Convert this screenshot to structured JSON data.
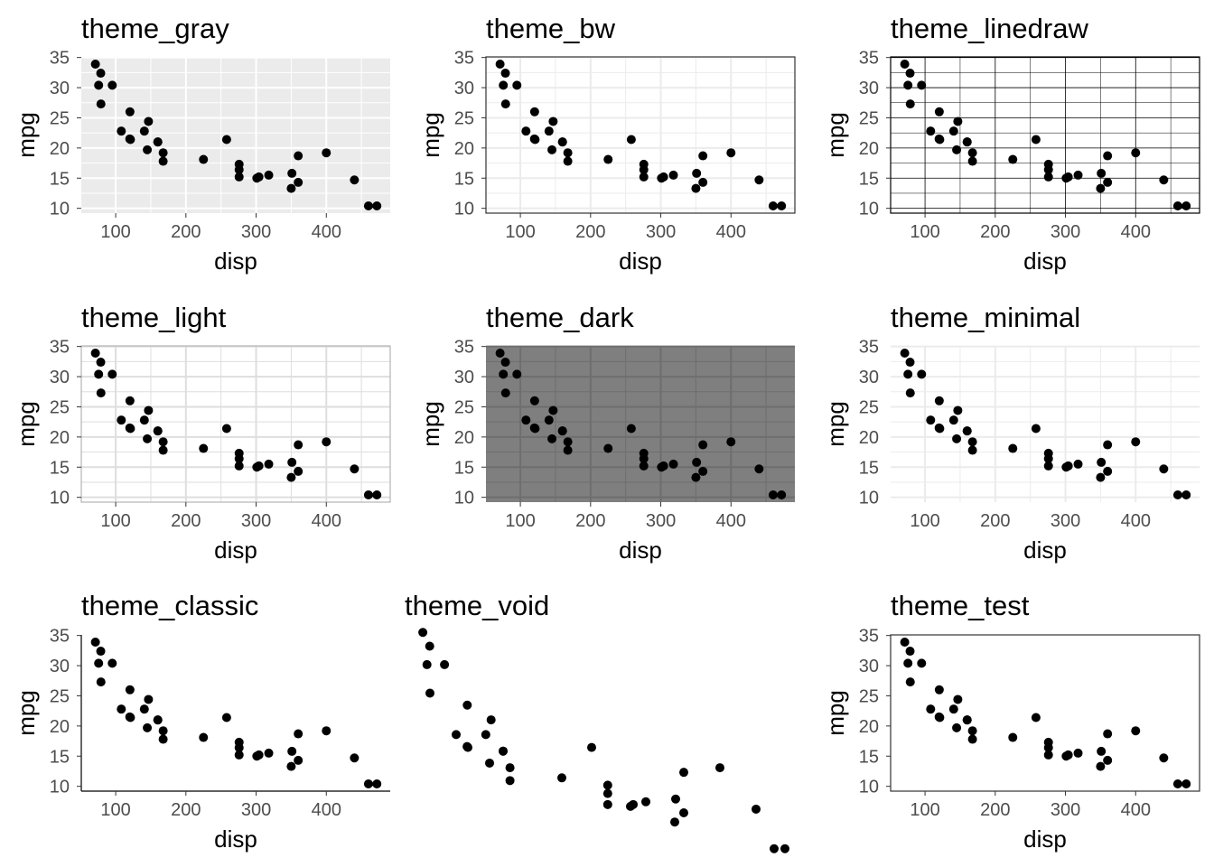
{
  "figure": {
    "shared": {
      "x": [
        71.1,
        75.7,
        78.7,
        79,
        95.1,
        108,
        120.1,
        120.3,
        121,
        140.8,
        145,
        146.7,
        160,
        160,
        167.6,
        167.6,
        225,
        258,
        275.8,
        275.8,
        275.8,
        301,
        304,
        318,
        350,
        351,
        360,
        360,
        400,
        440,
        460,
        472
      ],
      "y": [
        33.9,
        30.4,
        32.4,
        27.3,
        30.4,
        22.8,
        21.5,
        26,
        21.4,
        22.8,
        19.7,
        24.4,
        21,
        21,
        19.2,
        17.8,
        18.1,
        21.4,
        16.4,
        17.3,
        15.2,
        15,
        15.2,
        15.5,
        13.3,
        15.8,
        18.7,
        14.3,
        19.2,
        14.7,
        10.4,
        10.4
      ],
      "xlabel": "disp",
      "ylabel": "mpg",
      "xticks": [
        100,
        200,
        300,
        400
      ],
      "yticks": [
        10,
        15,
        20,
        25,
        30,
        35
      ]
    }
  },
  "chart_data": [
    {
      "type": "scatter",
      "title": "theme_gray",
      "theme": "gray",
      "panel_bg": "#ebebeb",
      "grid_color": "#ffffff",
      "xlabel": "disp",
      "ylabel": "mpg",
      "xlim": [
        51,
        491
      ],
      "ylim": [
        9.2,
        35.1
      ]
    },
    {
      "type": "scatter",
      "title": "theme_bw",
      "theme": "bw",
      "panel_bg": "#ffffff",
      "grid_color": "#ebebeb",
      "border_color": "#333333",
      "xlabel": "disp",
      "ylabel": "mpg",
      "xlim": [
        51,
        491
      ],
      "ylim": [
        9.2,
        35.1
      ]
    },
    {
      "type": "scatter",
      "title": "theme_linedraw",
      "theme": "linedraw",
      "panel_bg": "#ffffff",
      "grid_color": "#000000",
      "border_color": "#000000",
      "xlabel": "disp",
      "ylabel": "mpg",
      "xlim": [
        51,
        491
      ],
      "ylim": [
        9.2,
        35.1
      ]
    },
    {
      "type": "scatter",
      "title": "theme_light",
      "theme": "light",
      "panel_bg": "#ffffff",
      "grid_color": "#dedede",
      "border_color": "#b3b3b3",
      "xlabel": "disp",
      "ylabel": "mpg",
      "xlim": [
        51,
        491
      ],
      "ylim": [
        9.2,
        35.1
      ]
    },
    {
      "type": "scatter",
      "title": "theme_dark",
      "theme": "dark",
      "panel_bg": "#7f7f7f",
      "grid_color": "#6e6e6e",
      "xlabel": "disp",
      "ylabel": "mpg",
      "xlim": [
        51,
        491
      ],
      "ylim": [
        9.2,
        35.1
      ]
    },
    {
      "type": "scatter",
      "title": "theme_minimal",
      "theme": "minimal",
      "panel_bg": "#ffffff",
      "grid_color": "#ebebeb",
      "xlabel": "disp",
      "ylabel": "mpg",
      "xlim": [
        51,
        491
      ],
      "ylim": [
        9.2,
        35.1
      ]
    },
    {
      "type": "scatter",
      "title": "theme_classic",
      "theme": "classic",
      "panel_bg": "#ffffff",
      "axis_line_color": "#000000",
      "xlabel": "disp",
      "ylabel": "mpg",
      "xlim": [
        51,
        491
      ],
      "ylim": [
        9.2,
        35.1
      ]
    },
    {
      "type": "scatter",
      "title": "theme_void",
      "theme": "void",
      "panel_bg": "#ffffff",
      "xlabel": "",
      "ylabel": "",
      "xlim": [
        51,
        491
      ],
      "ylim": [
        9.2,
        35.1
      ]
    },
    {
      "type": "scatter",
      "title": "theme_test",
      "theme": "test",
      "panel_bg": "#ffffff",
      "border_color": "#333333",
      "xlabel": "disp",
      "ylabel": "mpg",
      "xlim": [
        51,
        491
      ],
      "ylim": [
        9.2,
        35.1
      ]
    }
  ]
}
